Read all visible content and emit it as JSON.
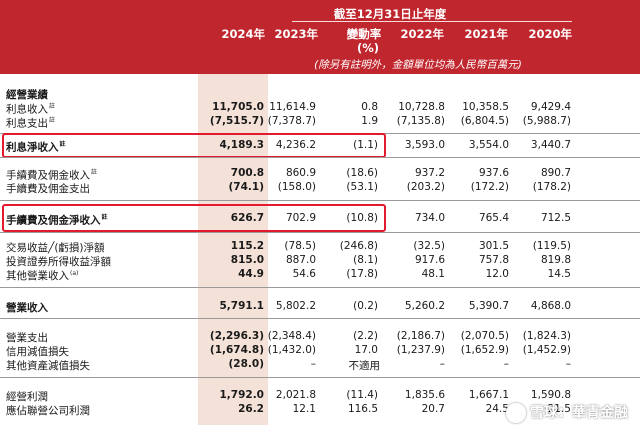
{
  "header": {
    "period": "截至12月31日止年度",
    "change_line1": "變動率",
    "change_line2": "(%)",
    "note": "(除另有註明外，金額單位均為人民幣百萬元)",
    "years": {
      "y2024": "2024年",
      "y2023": "2023年",
      "y2022": "2022年",
      "y2021": "2021年",
      "y2020": "2020年"
    }
  },
  "rows": {
    "r0": {
      "label": "經營業績"
    },
    "r1": {
      "label": "利息收入",
      "note": "註",
      "y2024": "11,705.0",
      "y2023": "11,614.9",
      "chg": "0.8",
      "y2022": "10,728.8",
      "y2021": "10,358.5",
      "y2020": "9,429.4"
    },
    "r2": {
      "label": "利息支出",
      "note": "註",
      "y2024": "(7,515.7)",
      "y2023": "(7,378.7)",
      "chg": "1.9",
      "y2022": "(7,135.8)",
      "y2021": "(6,804.5)",
      "y2020": "(5,988.7)"
    },
    "r3": {
      "label": "利息淨收入",
      "note": "註",
      "y2024": "4,189.3",
      "y2023": "4,236.2",
      "chg": "(1.1)",
      "y2022": "3,593.0",
      "y2021": "3,554.0",
      "y2020": "3,440.7"
    },
    "r4": {
      "label": "手續費及佣金收入",
      "note": "註",
      "y2024": "700.8",
      "y2023": "860.9",
      "chg": "(18.6)",
      "y2022": "937.2",
      "y2021": "937.6",
      "y2020": "890.7"
    },
    "r5": {
      "label": "手續費及佣金支出",
      "y2024": "(74.1)",
      "y2023": "(158.0)",
      "chg": "(53.1)",
      "y2022": "(203.2)",
      "y2021": "(172.2)",
      "y2020": "(178.2)"
    },
    "r6": {
      "label": "手續費及佣金淨收入",
      "note": "註",
      "y2024": "626.7",
      "y2023": "702.9",
      "chg": "(10.8)",
      "y2022": "734.0",
      "y2021": "765.4",
      "y2020": "712.5"
    },
    "r7": {
      "label": "交易收益╱(虧損)淨額",
      "y2024": "115.2",
      "y2023": "(78.5)",
      "chg": "(246.8)",
      "y2022": "(32.5)",
      "y2021": "301.5",
      "y2020": "(119.5)"
    },
    "r8": {
      "label": "投資證券所得收益淨額",
      "y2024": "815.0",
      "y2023": "887.0",
      "chg": "(8.1)",
      "y2022": "917.6",
      "y2021": "757.8",
      "y2020": "819.8"
    },
    "r9": {
      "label": "其他營業收入",
      "note": "(a)",
      "y2024": "44.9",
      "y2023": "54.6",
      "chg": "(17.8)",
      "y2022": "48.1",
      "y2021": "12.0",
      "y2020": "14.5"
    },
    "r10": {
      "label": "營業收入",
      "y2024": "5,791.1",
      "y2023": "5,802.2",
      "chg": "(0.2)",
      "y2022": "5,260.2",
      "y2021": "5,390.7",
      "y2020": "4,868.0"
    },
    "r11": {
      "label": "營業支出",
      "y2024": "(2,296.3)",
      "y2023": "(2,348.4)",
      "chg": "(2.2)",
      "y2022": "(2,186.7)",
      "y2021": "(2,070.5)",
      "y2020": "(1,824.3)"
    },
    "r12": {
      "label": "信用減值損失",
      "y2024": "(1,674.8)",
      "y2023": "(1,432.0)",
      "chg": "17.0",
      "y2022": "(1,237.9)",
      "y2021": "(1,652.9)",
      "y2020": "(1,452.9)"
    },
    "r13": {
      "label": "其他資產減值損失",
      "y2024": "(28.0)",
      "y2023": "–",
      "chg": "不適用",
      "y2022": "–",
      "y2021": "–",
      "y2020": "–"
    },
    "r14": {
      "label": "經營利潤",
      "y2024": "1,792.0",
      "y2023": "2,021.8",
      "chg": "(11.4)",
      "y2022": "1,835.6",
      "y2021": "1,667.1",
      "y2020": "1,590.8"
    },
    "r15": {
      "label": "應佔聯營公司利潤",
      "y2024": "26.2",
      "y2023": "12.1",
      "chg": "116.5",
      "y2022": "20.7",
      "y2021": "24.5",
      "y2020": "21.5"
    }
  },
  "watermark": "雪球：華青金融",
  "colors": {
    "header_bg": "#c0262d",
    "highlight_col": "#f4e2d8",
    "box": "#e3192d"
  }
}
